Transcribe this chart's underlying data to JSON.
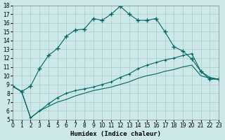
{
  "xlabel": "Humidex (Indice chaleur)",
  "bg_color": "#cce8e8",
  "grid_color": "#aacccc",
  "line_color": "#006666",
  "xlim": [
    0,
    23
  ],
  "ylim": [
    5,
    18
  ],
  "xticks": [
    0,
    1,
    2,
    3,
    4,
    5,
    6,
    7,
    8,
    9,
    10,
    11,
    12,
    13,
    14,
    15,
    16,
    17,
    18,
    19,
    20,
    21,
    22,
    23
  ],
  "yticks": [
    5,
    6,
    7,
    8,
    9,
    10,
    11,
    12,
    13,
    14,
    15,
    16,
    17,
    18
  ],
  "line1_x": [
    0,
    1,
    2,
    3,
    4,
    5,
    6,
    7,
    8,
    9,
    10,
    11,
    12,
    13,
    14,
    15,
    16,
    17,
    18,
    19,
    20,
    21,
    22,
    23
  ],
  "line1_y": [
    8.8,
    8.2,
    8.8,
    10.8,
    12.3,
    13.1,
    14.5,
    15.2,
    15.3,
    16.5,
    16.3,
    17.0,
    17.9,
    17.0,
    16.3,
    16.3,
    16.5,
    15.0,
    13.3,
    12.8,
    11.9,
    10.5,
    9.6,
    9.6
  ],
  "line2_x": [
    0,
    1,
    2,
    3,
    4,
    5,
    6,
    7,
    8,
    9,
    10,
    11,
    12,
    13,
    14,
    15,
    16,
    17,
    18,
    19,
    20,
    21,
    22,
    23
  ],
  "line2_y": [
    8.8,
    8.2,
    5.2,
    6.0,
    6.8,
    7.5,
    8.0,
    8.3,
    8.5,
    8.7,
    9.0,
    9.3,
    9.8,
    10.2,
    10.8,
    11.2,
    11.5,
    11.8,
    12.0,
    12.3,
    12.5,
    10.5,
    9.8,
    9.6
  ],
  "line3_x": [
    0,
    1,
    2,
    3,
    4,
    5,
    6,
    7,
    8,
    9,
    10,
    11,
    12,
    13,
    14,
    15,
    16,
    17,
    18,
    19,
    20,
    21,
    22,
    23
  ],
  "line3_y": [
    8.8,
    8.2,
    5.2,
    6.0,
    6.5,
    7.0,
    7.3,
    7.7,
    8.0,
    8.3,
    8.5,
    8.7,
    9.0,
    9.3,
    9.7,
    10.0,
    10.2,
    10.5,
    10.7,
    11.0,
    11.2,
    10.0,
    9.7,
    9.6
  ]
}
